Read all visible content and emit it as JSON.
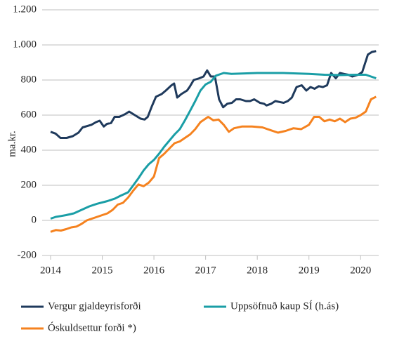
{
  "chart_data": {
    "type": "line",
    "ylabel": "ma.kr.",
    "xlim": [
      2014,
      2020.35
    ],
    "xticks": [
      2014,
      2015,
      2016,
      2017,
      2018,
      2019,
      2020
    ],
    "ylim": [
      -200,
      1200
    ],
    "yticks": [
      -200,
      0,
      200,
      400,
      600,
      800,
      {
        "value": 1000,
        "label": "1.000"
      },
      {
        "value": 1200,
        "label": "1.200"
      }
    ],
    "grid": true,
    "legend": "bottom",
    "series": [
      {
        "name": "Vergur gjaldeyrisforði",
        "color": "#1f3a5c",
        "x": [
          2014,
          2014.095,
          2014.19,
          2014.31,
          2014.43,
          2014.54,
          2014.62,
          2014.79,
          2014.88,
          2014.95,
          2015.03,
          2015.09,
          2015.17,
          2015.24,
          2015.33,
          2015.44,
          2015.52,
          2015.63,
          2015.74,
          2015.82,
          2015.88,
          2015.96,
          2016.04,
          2016.15,
          2016.23,
          2016.34,
          2016.39,
          2016.45,
          2016.53,
          2016.64,
          2016.69,
          2016.77,
          2016.88,
          2016.96,
          2017.03,
          2017.1,
          2017.18,
          2017.26,
          2017.34,
          2017.42,
          2017.51,
          2017.59,
          2017.67,
          2017.78,
          2017.86,
          2017.94,
          2018.05,
          2018.13,
          2018.18,
          2018.27,
          2018.35,
          2018.43,
          2018.51,
          2018.59,
          2018.67,
          2018.76,
          2018.86,
          2018.95,
          2019.03,
          2019.11,
          2019.19,
          2019.27,
          2019.35,
          2019.43,
          2019.52,
          2019.6,
          2019.68,
          2019.76,
          2019.84,
          2019.95,
          2020.03,
          2020.14,
          2020.22,
          2020.3
        ],
        "values": [
          505,
          495,
          470,
          470,
          480,
          500,
          530,
          545,
          560,
          568,
          535,
          550,
          555,
          590,
          590,
          605,
          620,
          600,
          580,
          575,
          590,
          650,
          705,
          720,
          740,
          770,
          780,
          700,
          720,
          740,
          760,
          800,
          810,
          820,
          855,
          820,
          820,
          690,
          645,
          665,
          670,
          690,
          690,
          680,
          680,
          690,
          670,
          665,
          655,
          665,
          680,
          675,
          670,
          680,
          700,
          760,
          770,
          740,
          760,
          750,
          765,
          760,
          770,
          840,
          810,
          840,
          835,
          830,
          820,
          830,
          845,
          945,
          960,
          965
        ]
      },
      {
        "name": "Uppsöfnuð kaup SÍ (h.ás)",
        "color": "#1a9ea6",
        "x": [
          2014,
          2014.1,
          2014.2,
          2014.3,
          2014.45,
          2014.6,
          2014.75,
          2014.9,
          2015.1,
          2015.25,
          2015.35,
          2015.5,
          2015.6,
          2015.7,
          2015.8,
          2015.9,
          2016,
          2016.1,
          2016.2,
          2016.3,
          2016.4,
          2016.5,
          2016.6,
          2016.7,
          2016.8,
          2016.9,
          2017,
          2017.1,
          2017.2,
          2017.35,
          2017.5,
          2018,
          2018.5,
          2019,
          2019.3,
          2019.6,
          2019.9,
          2020.1,
          2020.3
        ],
        "values": [
          10,
          20,
          25,
          30,
          40,
          60,
          80,
          95,
          110,
          125,
          140,
          160,
          200,
          240,
          285,
          320,
          345,
          380,
          420,
          455,
          490,
          520,
          570,
          625,
          680,
          740,
          775,
          790,
          825,
          840,
          835,
          840,
          840,
          835,
          830,
          828,
          830,
          830,
          810
        ]
      },
      {
        "name": "Óskuldsettur forði *)",
        "color": "#f5821f",
        "x": [
          2014,
          2014.1,
          2014.2,
          2014.3,
          2014.4,
          2014.5,
          2014.6,
          2014.7,
          2014.8,
          2014.9,
          2015,
          2015.1,
          2015.2,
          2015.3,
          2015.4,
          2015.5,
          2015.6,
          2015.7,
          2015.8,
          2015.9,
          2016,
          2016.1,
          2016.2,
          2016.3,
          2016.4,
          2016.5,
          2016.6,
          2016.7,
          2016.8,
          2016.9,
          2017,
          2017.05,
          2017.15,
          2017.25,
          2017.35,
          2017.45,
          2017.55,
          2017.7,
          2017.9,
          2018.1,
          2018.25,
          2018.4,
          2018.55,
          2018.7,
          2018.85,
          2019,
          2019.1,
          2019.2,
          2019.3,
          2019.4,
          2019.5,
          2019.6,
          2019.7,
          2019.8,
          2019.9,
          2020,
          2020.1,
          2020.2,
          2020.3
        ],
        "values": [
          -65,
          -55,
          -58,
          -50,
          -40,
          -35,
          -20,
          0,
          10,
          20,
          30,
          40,
          60,
          90,
          100,
          130,
          170,
          205,
          195,
          215,
          250,
          355,
          380,
          410,
          440,
          450,
          470,
          490,
          520,
          560,
          580,
          590,
          570,
          575,
          545,
          505,
          525,
          535,
          535,
          530,
          515,
          500,
          510,
          525,
          520,
          545,
          590,
          590,
          565,
          575,
          565,
          580,
          560,
          580,
          585,
          600,
          620,
          690,
          705
        ]
      }
    ]
  }
}
